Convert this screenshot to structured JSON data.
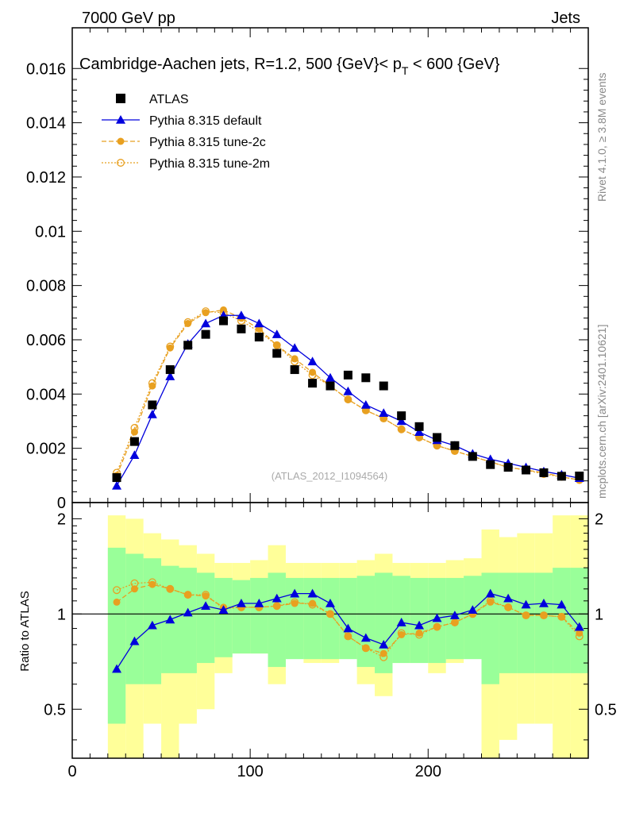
{
  "header": {
    "left": "7000 GeV pp",
    "right": "Jets"
  },
  "side_labels": {
    "rivet": "Rivet 4.1.0, ≥ 3.8M events",
    "mcplots": "mcplots.cern.ch [arXiv:2401.10621]"
  },
  "colors": {
    "data": "#000000",
    "default": "#0000dd",
    "tune": "#e8a020",
    "band_inner": "#99ff99",
    "band_outer": "#ffff99"
  },
  "chart_data": [
    {
      "type": "scatter",
      "title": "Cambridge-Aachen jets, R=1.2, 500 {GeV}< p_T < 600 {GeV}",
      "title_main": "Cambridge-Aachen jets, R=1.2, 500 {GeV}< p",
      "title_sub": "T",
      "title_tail": " < 600 {GeV}",
      "watermark": "(ATLAS_2012_I1094564)",
      "xlim": [
        0,
        290
      ],
      "ylim": [
        0,
        0.0175
      ],
      "yticks": [
        0,
        0.002,
        0.004,
        0.006,
        0.008,
        0.01,
        0.012,
        0.014,
        0.016
      ],
      "ytick_labels": [
        "0",
        "0.002",
        "0.004",
        "0.006",
        "0.008",
        "0.01",
        "0.012",
        "0.014",
        "0.016"
      ],
      "legend_position": "top-left",
      "x": [
        25,
        35,
        45,
        55,
        65,
        75,
        85,
        95,
        105,
        115,
        125,
        135,
        145,
        155,
        165,
        175,
        185,
        195,
        205,
        215,
        225,
        235,
        245,
        255,
        265,
        275,
        285
      ],
      "series": [
        {
          "name": "ATLAS",
          "values": [
            0.00092,
            0.00225,
            0.0036,
            0.0049,
            0.0058,
            0.0062,
            0.0067,
            0.0064,
            0.0061,
            0.0055,
            0.0049,
            0.0044,
            0.0043,
            0.0047,
            0.0046,
            0.0043,
            0.0032,
            0.0028,
            0.0024,
            0.0021,
            0.0017,
            0.0014,
            0.0013,
            0.0012,
            0.0011,
            0.00097,
            0.00098
          ]
        },
        {
          "name": "Pythia 8.315 default",
          "values": [
            0.00062,
            0.00175,
            0.00325,
            0.00465,
            0.00585,
            0.0066,
            0.0069,
            0.0069,
            0.0066,
            0.0062,
            0.0057,
            0.0052,
            0.0046,
            0.0041,
            0.0036,
            0.0033,
            0.003,
            0.0026,
            0.0023,
            0.0021,
            0.0018,
            0.0016,
            0.00145,
            0.0013,
            0.00115,
            0.00103,
            0.0009
          ]
        },
        {
          "name": "Pythia 8.315 tune-2c",
          "values": [
            0.001,
            0.0026,
            0.0043,
            0.0057,
            0.0066,
            0.007,
            0.0071,
            0.0068,
            0.0064,
            0.0058,
            0.0053,
            0.0048,
            0.0043,
            0.0038,
            0.0034,
            0.0031,
            0.0027,
            0.0024,
            0.0021,
            0.0019,
            0.0017,
            0.0015,
            0.0013,
            0.0012,
            0.0011,
            0.00095,
            0.00083
          ]
        },
        {
          "name": "Pythia 8.315 tune-2m",
          "values": [
            0.0011,
            0.00275,
            0.0044,
            0.00575,
            0.00665,
            0.00705,
            0.007,
            0.0067,
            0.0063,
            0.0058,
            0.0052,
            0.0047,
            0.0043,
            0.0038,
            0.0034,
            0.0031,
            0.0027,
            0.0024,
            0.0021,
            0.0019,
            0.0017,
            0.0015,
            0.0013,
            0.0012,
            0.00105,
            0.00095,
            0.00083
          ]
        }
      ]
    },
    {
      "type": "line",
      "ylabel": "Ratio to ATLAS",
      "xlim": [
        0,
        290
      ],
      "ylim": [
        0.35,
        2.25
      ],
      "yticks": [
        0.5,
        1,
        2
      ],
      "ytick_labels": [
        "0.5",
        "1",
        "2"
      ],
      "xticks": [
        0,
        100,
        200
      ],
      "xtick_labels": [
        "0",
        "100",
        "200"
      ],
      "bin_edges": [
        20,
        30,
        40,
        50,
        60,
        70,
        80,
        90,
        100,
        110,
        120,
        130,
        140,
        150,
        160,
        170,
        180,
        190,
        200,
        210,
        220,
        230,
        240,
        250,
        260,
        270,
        280,
        290
      ],
      "band_inner": {
        "low": [
          0.45,
          0.6,
          0.6,
          0.65,
          0.65,
          0.7,
          0.73,
          0.75,
          0.75,
          0.68,
          0.72,
          0.72,
          0.72,
          0.72,
          0.68,
          0.65,
          0.7,
          0.7,
          0.7,
          0.72,
          0.72,
          0.6,
          0.65,
          0.65,
          0.65,
          0.65,
          0.65
        ],
        "high": [
          1.62,
          1.55,
          1.5,
          1.42,
          1.4,
          1.35,
          1.3,
          1.28,
          1.3,
          1.35,
          1.3,
          1.3,
          1.3,
          1.3,
          1.32,
          1.35,
          1.32,
          1.3,
          1.3,
          1.3,
          1.32,
          1.35,
          1.35,
          1.35,
          1.35,
          1.4,
          1.4
        ]
      },
      "band_outer": {
        "low": [
          0.35,
          0.35,
          0.45,
          0.35,
          0.45,
          0.5,
          0.65,
          0.75,
          0.75,
          0.6,
          0.75,
          0.7,
          0.7,
          0.75,
          0.6,
          0.55,
          0.7,
          0.7,
          0.65,
          0.7,
          0.75,
          0.35,
          0.4,
          0.45,
          0.45,
          0.35,
          0.35
        ],
        "high": [
          2.05,
          2.0,
          1.8,
          1.72,
          1.65,
          1.55,
          1.45,
          1.45,
          1.48,
          1.65,
          1.45,
          1.45,
          1.45,
          1.45,
          1.48,
          1.55,
          1.45,
          1.45,
          1.45,
          1.48,
          1.5,
          1.85,
          1.75,
          1.8,
          1.8,
          2.05,
          2.05
        ]
      },
      "series": [
        {
          "name": "Pythia 8.315 default",
          "values": [
            0.67,
            0.82,
            0.92,
            0.96,
            1.01,
            1.06,
            1.03,
            1.08,
            1.08,
            1.12,
            1.16,
            1.16,
            1.08,
            0.9,
            0.84,
            0.8,
            0.94,
            0.92,
            0.97,
            0.99,
            1.03,
            1.16,
            1.12,
            1.07,
            1.08,
            1.07,
            0.91
          ]
        },
        {
          "name": "Pythia 8.315 tune-2c",
          "values": [
            1.09,
            1.2,
            1.24,
            1.2,
            1.15,
            1.14,
            1.05,
            1.05,
            1.05,
            1.06,
            1.08,
            1.08,
            1.0,
            0.85,
            0.78,
            0.75,
            0.86,
            0.87,
            0.91,
            0.94,
            1.0,
            1.09,
            1.05,
            0.99,
            0.99,
            0.98,
            0.87
          ]
        },
        {
          "name": "Pythia 8.315 tune-2m",
          "values": [
            1.19,
            1.25,
            1.26,
            1.2,
            1.15,
            1.15,
            1.04,
            1.05,
            1.05,
            1.06,
            1.09,
            1.07,
            1.0,
            0.85,
            0.78,
            0.73,
            0.87,
            0.86,
            0.91,
            0.94,
            1.0,
            1.1,
            1.05,
            0.99,
            0.99,
            0.98,
            0.85
          ]
        }
      ]
    }
  ]
}
